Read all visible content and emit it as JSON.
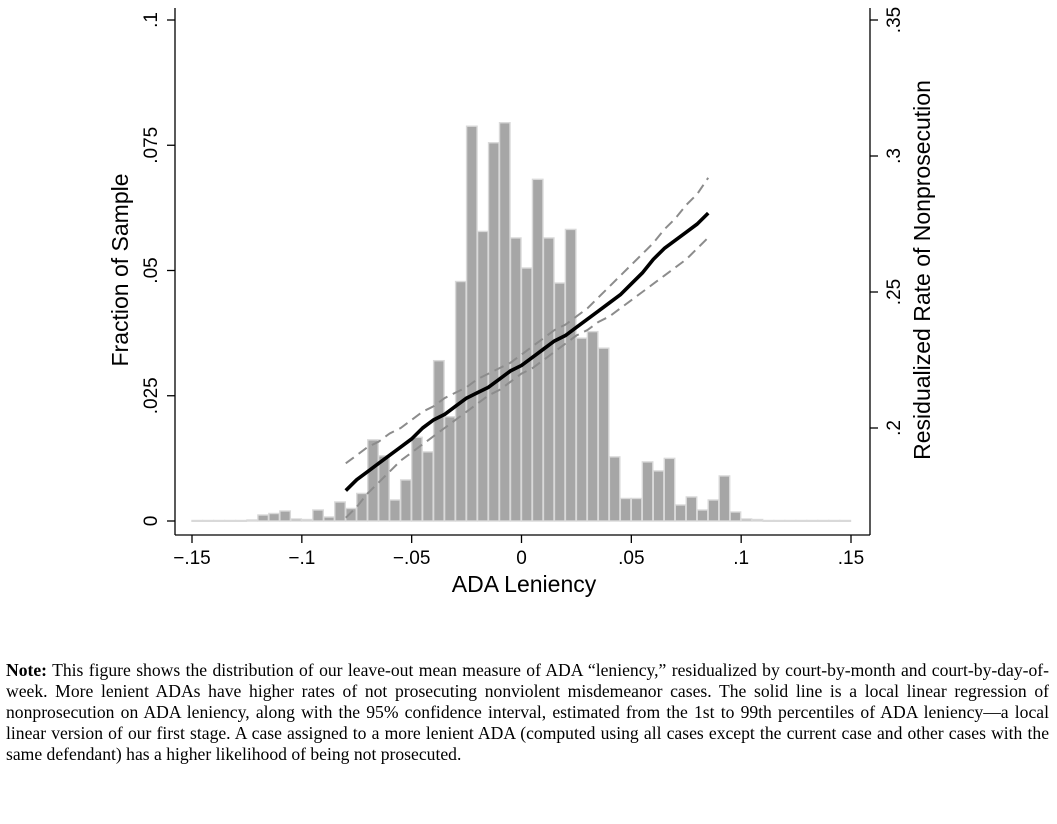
{
  "chart_data": {
    "type": "bar",
    "xlabel": "ADA Leniency",
    "ylabel_left": "Fraction of Sample",
    "ylabel_right": "Residualized Rate of Nonprosecution",
    "xlim": [
      -0.155,
      0.155
    ],
    "ylim_left": [
      0,
      0.1
    ],
    "ylim_right": [
      0.165,
      0.35
    ],
    "x_ticks": [
      {
        "value": -0.15,
        "label": "−.15"
      },
      {
        "value": -0.1,
        "label": "−.1"
      },
      {
        "value": -0.05,
        "label": "−.05"
      },
      {
        "value": 0,
        "label": "0"
      },
      {
        "value": 0.05,
        "label": ".05"
      },
      {
        "value": 0.1,
        "label": ".1"
      },
      {
        "value": 0.15,
        "label": ".15"
      }
    ],
    "y_left_ticks": [
      {
        "value": 0,
        "label": "0"
      },
      {
        "value": 0.025,
        "label": ".025"
      },
      {
        "value": 0.05,
        "label": ".05"
      },
      {
        "value": 0.075,
        "label": ".075"
      },
      {
        "value": 0.1,
        "label": ".1"
      }
    ],
    "y_right_ticks": [
      {
        "value": 0.2,
        "label": ".2"
      },
      {
        "value": 0.25,
        "label": ".25"
      },
      {
        "value": 0.3,
        "label": ".3"
      },
      {
        "value": 0.35,
        "label": ".35"
      }
    ],
    "histogram": {
      "bin_width": 0.005,
      "bin_centers": [
        -0.1475,
        -0.1425,
        -0.1375,
        -0.1325,
        -0.1275,
        -0.1225,
        -0.1175,
        -0.1125,
        -0.1075,
        -0.1025,
        -0.0975,
        -0.0925,
        -0.0875,
        -0.0825,
        -0.0775,
        -0.0725,
        -0.0675,
        -0.0625,
        -0.0575,
        -0.0525,
        -0.0475,
        -0.0425,
        -0.0375,
        -0.0325,
        -0.0275,
        -0.0225,
        -0.0175,
        -0.0125,
        -0.0075,
        -0.0025,
        0.0025,
        0.0075,
        0.0125,
        0.0175,
        0.0225,
        0.0275,
        0.0325,
        0.0375,
        0.0425,
        0.0475,
        0.0525,
        0.0575,
        0.0625,
        0.0675,
        0.0725,
        0.0775,
        0.0825,
        0.0875,
        0.0925,
        0.0975,
        0.1025,
        0.1075,
        0.1125,
        0.1175,
        0.1225,
        0.1275,
        0.1325,
        0.1375,
        0.1425,
        0.1475
      ],
      "fractions": [
        0.0001,
        0.0001,
        0.0001,
        0.0001,
        0.0001,
        0.0002,
        0.0012,
        0.0015,
        0.002,
        0.0004,
        0.0003,
        0.0022,
        0.0008,
        0.0038,
        0.0025,
        0.0055,
        0.0162,
        0.013,
        0.0042,
        0.0082,
        0.0167,
        0.0138,
        0.032,
        0.0208,
        0.0478,
        0.0788,
        0.0578,
        0.0755,
        0.0795,
        0.0565,
        0.0505,
        0.0682,
        0.0565,
        0.0475,
        0.0582,
        0.0365,
        0.0378,
        0.0345,
        0.0128,
        0.0045,
        0.0045,
        0.0118,
        0.01,
        0.0125,
        0.0032,
        0.0048,
        0.0022,
        0.0042,
        0.009,
        0.0018,
        0.0004,
        0.0003,
        0.0001,
        0.0001,
        0.0001,
        0.0001,
        0.0001,
        0.0001,
        0.0001,
        0.0001
      ]
    },
    "local_linear_fit": {
      "x": [
        -0.08,
        -0.075,
        -0.07,
        -0.065,
        -0.06,
        -0.055,
        -0.05,
        -0.045,
        -0.04,
        -0.035,
        -0.03,
        -0.025,
        -0.02,
        -0.015,
        -0.01,
        -0.005,
        0.0,
        0.005,
        0.01,
        0.015,
        0.02,
        0.025,
        0.03,
        0.035,
        0.04,
        0.045,
        0.05,
        0.055,
        0.06,
        0.065,
        0.07,
        0.075,
        0.08,
        0.085
      ],
      "y": [
        0.177,
        0.181,
        0.184,
        0.187,
        0.19,
        0.193,
        0.196,
        0.2,
        0.203,
        0.205,
        0.208,
        0.211,
        0.213,
        0.215,
        0.218,
        0.221,
        0.223,
        0.226,
        0.229,
        0.232,
        0.234,
        0.237,
        0.24,
        0.243,
        0.246,
        0.249,
        0.253,
        0.257,
        0.262,
        0.266,
        0.269,
        0.272,
        0.275,
        0.279
      ],
      "ci_lower": [
        0.167,
        0.171,
        0.176,
        0.18,
        0.184,
        0.188,
        0.191,
        0.194,
        0.197,
        0.2,
        0.203,
        0.206,
        0.209,
        0.212,
        0.214,
        0.217,
        0.22,
        0.222,
        0.225,
        0.228,
        0.231,
        0.234,
        0.236,
        0.239,
        0.241,
        0.244,
        0.247,
        0.25,
        0.253,
        0.256,
        0.259,
        0.262,
        0.266,
        0.27
      ],
      "ci_upper": [
        0.187,
        0.19,
        0.193,
        0.195,
        0.198,
        0.2,
        0.203,
        0.206,
        0.208,
        0.211,
        0.213,
        0.215,
        0.218,
        0.22,
        0.222,
        0.224,
        0.227,
        0.23,
        0.233,
        0.236,
        0.238,
        0.241,
        0.244,
        0.248,
        0.252,
        0.256,
        0.26,
        0.264,
        0.268,
        0.273,
        0.277,
        0.282,
        0.286,
        0.292
      ]
    },
    "colors": {
      "bar_fill": "#a6a6a6",
      "bar_edge": "#d9d9d9",
      "fit_line": "#000000",
      "ci_line": "#8c8c8c",
      "axis": "#000000"
    }
  },
  "note": {
    "label": "Note:",
    "text": "This figure shows the distribution of our leave-out mean measure of ADA “leniency,” residualized by court-by-month and court-by-day-of-week. More lenient ADAs have higher rates of not prosecuting nonviolent misdemeanor cases. The solid line is a local linear regression of nonprosecution on ADA leniency, along with the 95% confidence interval, estimated from the 1st to 99th percentiles of ADA leniency—a local linear version of our first stage. A case assigned to a more lenient ADA (computed using all cases except the current case and other cases with the same defendant) has a higher likelihood of being not prosecuted."
  }
}
